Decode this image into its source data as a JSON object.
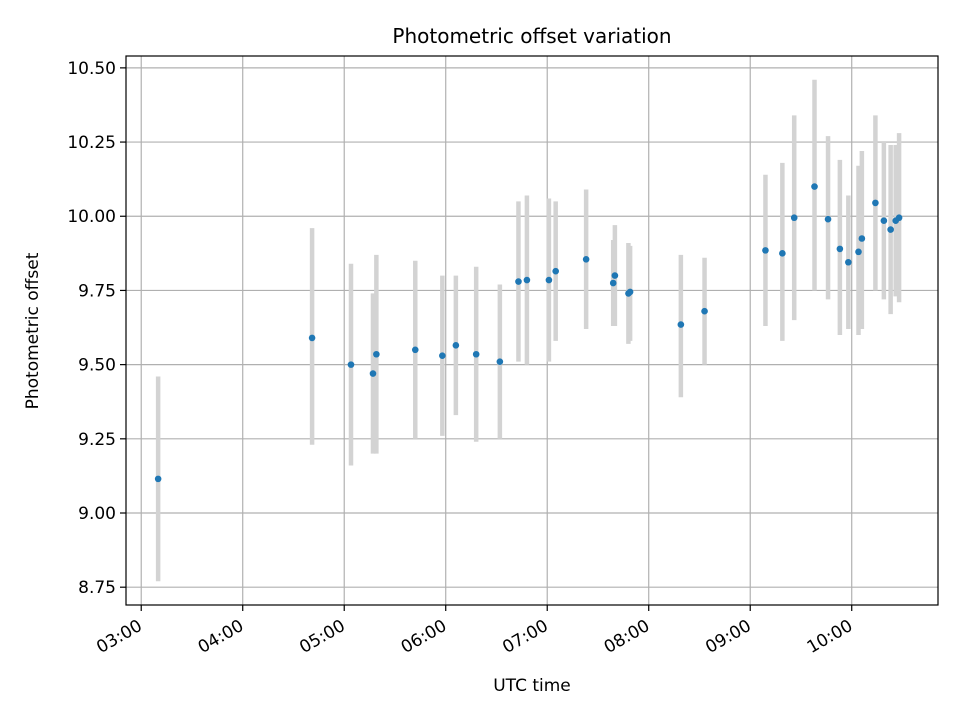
{
  "chart_data": {
    "type": "scatter",
    "title": "Photometric offset variation",
    "xlabel": "UTC time",
    "ylabel": "Photometric offset",
    "x_ticks": [
      "03:00",
      "04:00",
      "05:00",
      "06:00",
      "07:00",
      "08:00",
      "09:00",
      "10:00"
    ],
    "y_ticks": [
      "8.75",
      "9.00",
      "9.25",
      "9.50",
      "9.75",
      "10.00",
      "10.25",
      "10.50"
    ],
    "xlim": [
      "02:51",
      "10:51"
    ],
    "ylim": [
      8.69,
      10.54
    ],
    "grid": true,
    "colors": {
      "points": "#1f77b4",
      "errorbars": "#d3d3d3",
      "grid": "#b0b0b0"
    },
    "series": [
      {
        "points": [
          {
            "x": "03:10",
            "y": 9.115,
            "err_low": 8.77,
            "err_high": 9.46
          },
          {
            "x": "04:41",
            "y": 9.59,
            "err_low": 9.23,
            "err_high": 9.96
          },
          {
            "x": "05:04",
            "y": 9.5,
            "err_low": 9.16,
            "err_high": 9.84
          },
          {
            "x": "05:17",
            "y": 9.47,
            "err_low": 9.2,
            "err_high": 9.74
          },
          {
            "x": "05:19",
            "y": 9.535,
            "err_low": 9.2,
            "err_high": 9.87
          },
          {
            "x": "05:42",
            "y": 9.55,
            "err_low": 9.25,
            "err_high": 9.85
          },
          {
            "x": "05:58",
            "y": 9.53,
            "err_low": 9.26,
            "err_high": 9.8
          },
          {
            "x": "06:06",
            "y": 9.565,
            "err_low": 9.33,
            "err_high": 9.8
          },
          {
            "x": "06:18",
            "y": 9.535,
            "err_low": 9.24,
            "err_high": 9.83
          },
          {
            "x": "06:32",
            "y": 9.51,
            "err_low": 9.25,
            "err_high": 9.77
          },
          {
            "x": "06:43",
            "y": 9.78,
            "err_low": 9.51,
            "err_high": 10.05
          },
          {
            "x": "06:48",
            "y": 9.785,
            "err_low": 9.5,
            "err_high": 10.07
          },
          {
            "x": "07:01",
            "y": 9.785,
            "err_low": 9.51,
            "err_high": 10.06
          },
          {
            "x": "07:05",
            "y": 9.815,
            "err_low": 9.58,
            "err_high": 10.05
          },
          {
            "x": "07:23",
            "y": 9.855,
            "err_low": 9.62,
            "err_high": 10.09
          },
          {
            "x": "07:39",
            "y": 9.775,
            "err_low": 9.63,
            "err_high": 9.92
          },
          {
            "x": "07:40",
            "y": 9.8,
            "err_low": 9.63,
            "err_high": 9.97
          },
          {
            "x": "07:48",
            "y": 9.74,
            "err_low": 9.57,
            "err_high": 9.91
          },
          {
            "x": "07:49",
            "y": 9.745,
            "err_low": 9.58,
            "err_high": 9.9
          },
          {
            "x": "08:19",
            "y": 9.635,
            "err_low": 9.39,
            "err_high": 9.87
          },
          {
            "x": "08:33",
            "y": 9.68,
            "err_low": 9.5,
            "err_high": 9.86
          },
          {
            "x": "09:09",
            "y": 9.885,
            "err_low": 9.63,
            "err_high": 10.14
          },
          {
            "x": "09:19",
            "y": 9.875,
            "err_low": 9.58,
            "err_high": 10.18
          },
          {
            "x": "09:26",
            "y": 9.995,
            "err_low": 9.65,
            "err_high": 10.34
          },
          {
            "x": "09:38",
            "y": 10.1,
            "err_low": 9.75,
            "err_high": 10.46
          },
          {
            "x": "09:46",
            "y": 9.99,
            "err_low": 9.72,
            "err_high": 10.27
          },
          {
            "x": "09:53",
            "y": 9.89,
            "err_low": 9.6,
            "err_high": 10.19
          },
          {
            "x": "09:58",
            "y": 9.845,
            "err_low": 9.62,
            "err_high": 10.07
          },
          {
            "x": "10:04",
            "y": 9.88,
            "err_low": 9.6,
            "err_high": 10.17
          },
          {
            "x": "10:06",
            "y": 9.925,
            "err_low": 9.62,
            "err_high": 10.22
          },
          {
            "x": "10:14",
            "y": 10.045,
            "err_low": 9.75,
            "err_high": 10.34
          },
          {
            "x": "10:19",
            "y": 9.985,
            "err_low": 9.72,
            "err_high": 10.25
          },
          {
            "x": "10:23",
            "y": 9.955,
            "err_low": 9.67,
            "err_high": 10.24
          },
          {
            "x": "10:26",
            "y": 9.985,
            "err_low": 9.73,
            "err_high": 10.24
          },
          {
            "x": "10:28",
            "y": 9.995,
            "err_low": 9.71,
            "err_high": 10.28
          }
        ]
      }
    ]
  }
}
